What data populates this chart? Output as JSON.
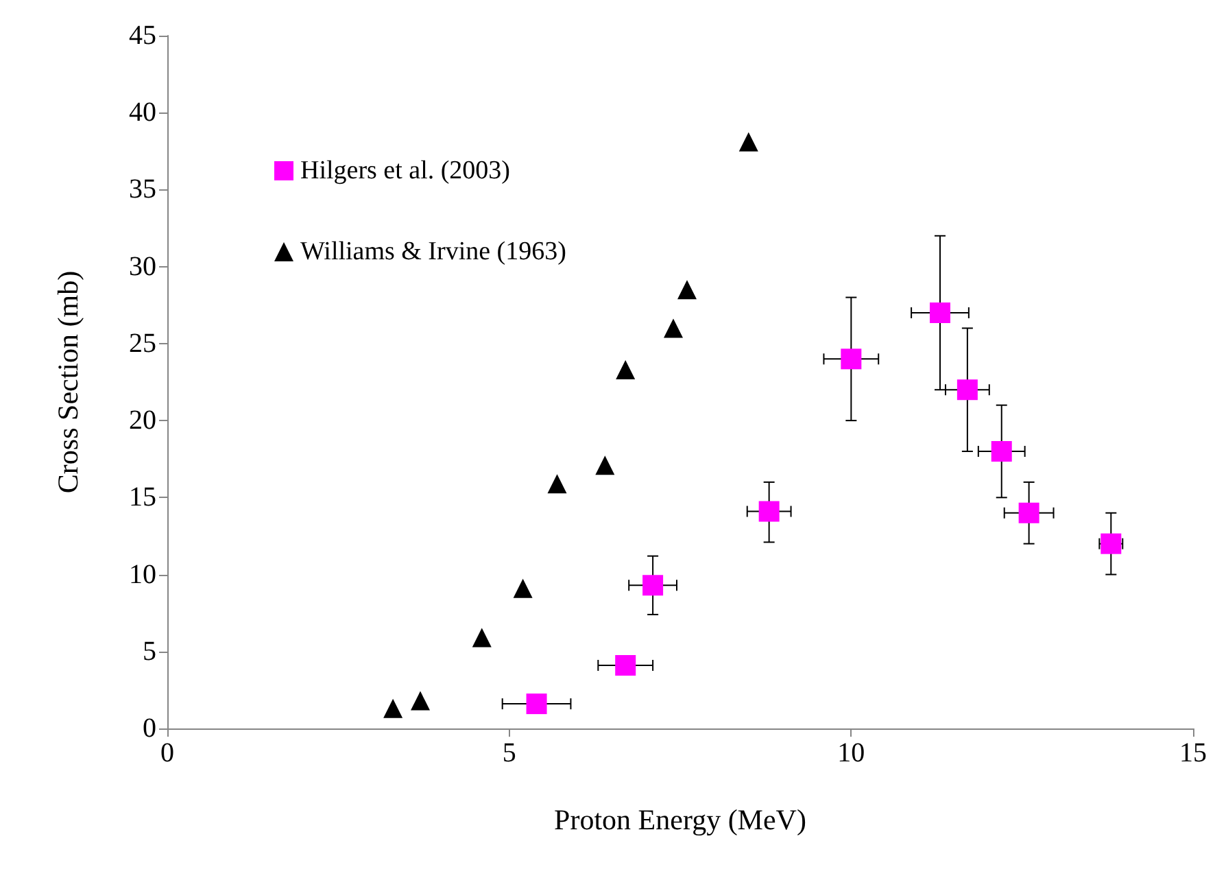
{
  "chart_data": {
    "type": "scatter",
    "xlabel": "Proton Energy (MeV)",
    "ylabel": "Cross Section (mb)",
    "xlim": [
      0,
      15
    ],
    "xticks": [
      0,
      5,
      10,
      15
    ],
    "ylim": [
      0,
      45
    ],
    "yticks": [
      0,
      5,
      10,
      15,
      20,
      25,
      30,
      35,
      40,
      45
    ],
    "grid": false,
    "legend": "top left",
    "series": [
      {
        "name": "Hilgers et al. (2003)",
        "color": "#ff00ff",
        "marker": "square",
        "x": [
          5.4,
          6.7,
          7.1,
          8.8,
          10.0,
          11.3,
          11.7,
          12.2,
          12.6,
          13.8
        ],
        "values": [
          1.6,
          4.1,
          9.3,
          14.1,
          24,
          27,
          22,
          18,
          14,
          12
        ],
        "errors": [
          null,
          null,
          [
            7.4,
            11.2
          ],
          [
            12.1,
            16
          ],
          [
            20,
            28
          ],
          [
            22,
            32
          ],
          [
            18,
            26
          ],
          [
            15,
            21
          ],
          [
            12,
            16
          ],
          [
            10,
            14
          ]
        ],
        "xerrors": [
          0.5,
          0.4,
          0.35,
          0.32,
          0.4,
          0.42,
          0.32,
          0.34,
          0.36,
          0.17
        ]
      },
      {
        "name": "Williams & Irvine (1963)",
        "color": "#000000",
        "marker": "triangle",
        "x": [
          3.3,
          3.7,
          4.6,
          5.2,
          5.7,
          6.4,
          6.7,
          7.4,
          7.6,
          8.5
        ],
        "values": [
          1.3,
          1.8,
          5.9,
          9.1,
          15.9,
          17.1,
          23.3,
          26.0,
          28.5,
          38.1
        ]
      }
    ]
  }
}
